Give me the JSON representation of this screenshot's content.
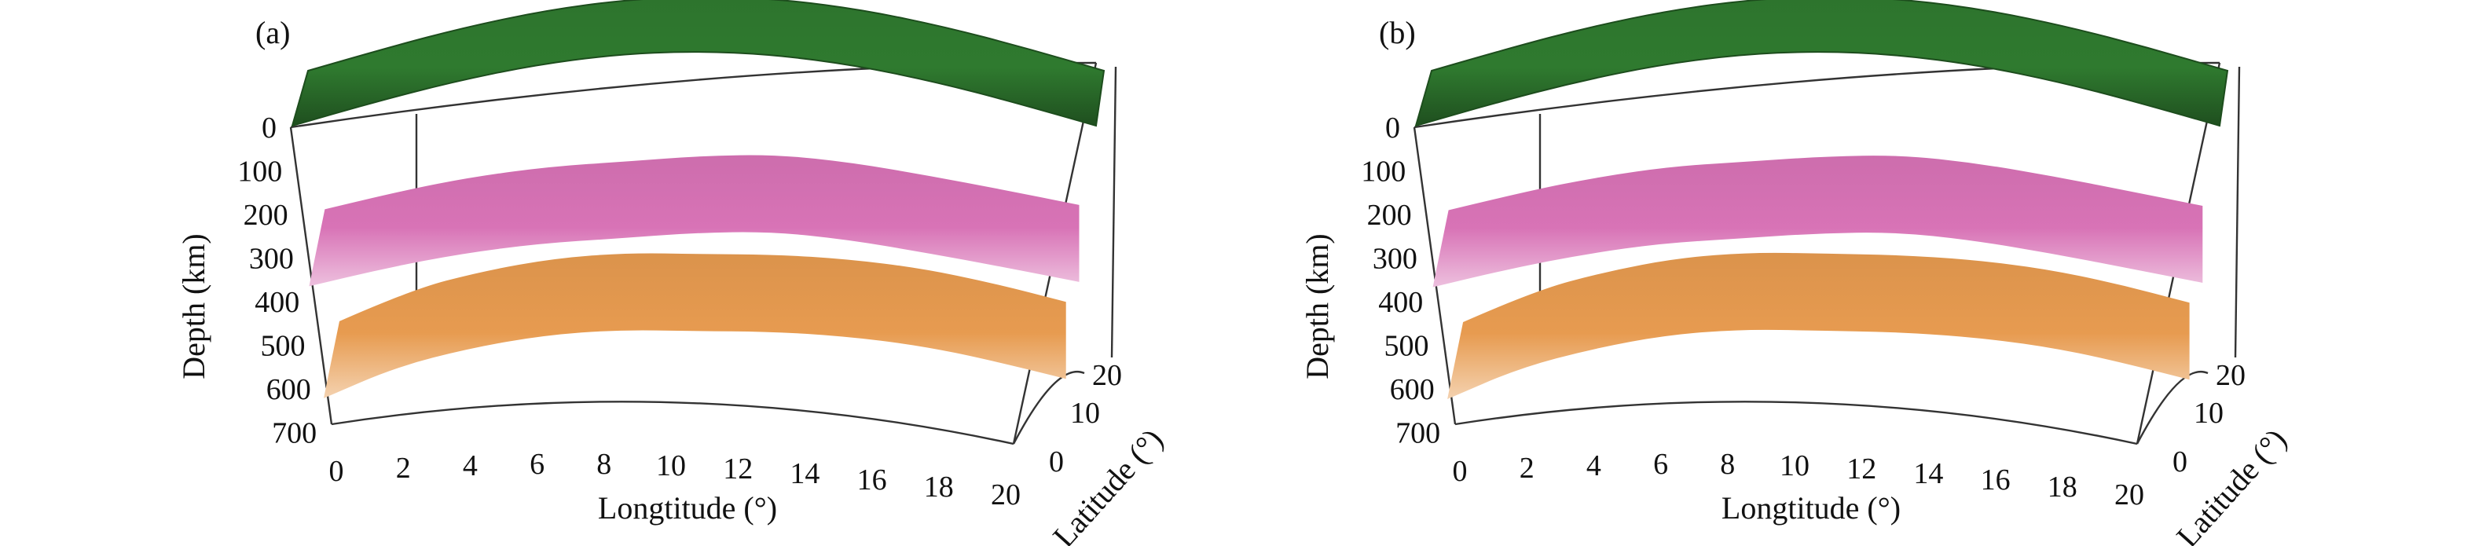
{
  "chart_data": [
    {
      "type": "surface3d",
      "panel_label": "(a)",
      "xlabel": "Longtitude (°)",
      "ylabel": "Latitude (°)",
      "zlabel": "Depth (km)",
      "x_ticks": [
        0,
        2,
        4,
        6,
        8,
        10,
        12,
        14,
        16,
        18,
        20
      ],
      "y_ticks": [
        0,
        10,
        20
      ],
      "z_ticks": [
        0,
        100,
        200,
        300,
        400,
        500,
        600,
        700
      ],
      "xlim": [
        0,
        20
      ],
      "ylim": [
        0,
        20
      ],
      "zlim": [
        0,
        700
      ],
      "surfaces": [
        {
          "color": "#2f7a2f",
          "depth_profile": [
            0,
            0,
            0,
            0,
            0,
            0,
            0,
            0,
            0,
            0,
            0
          ]
        },
        {
          "color": "#d873b6",
          "depth_profile": [
            300,
            290,
            285,
            285,
            288,
            280,
            272,
            276,
            283,
            287,
            290
          ]
        },
        {
          "color": "#e79b50",
          "depth_profile": [
            560,
            520,
            505,
            498,
            500,
            508,
            504,
            500,
            498,
            504,
            515
          ]
        }
      ]
    },
    {
      "type": "surface3d",
      "panel_label": "(b)",
      "xlabel": "Longtitude (°)",
      "ylabel": "Latitude (°)",
      "zlabel": "Depth (km)",
      "x_ticks": [
        0,
        2,
        4,
        6,
        8,
        10,
        12,
        14,
        16,
        18,
        20
      ],
      "y_ticks": [
        0,
        10,
        20
      ],
      "z_ticks": [
        0,
        100,
        200,
        300,
        400,
        500,
        600,
        700
      ],
      "xlim": [
        0,
        20
      ],
      "ylim": [
        0,
        20
      ],
      "zlim": [
        0,
        700
      ],
      "surfaces": [
        {
          "color": "#2f7a2f",
          "depth_profile": [
            0,
            0,
            0,
            0,
            0,
            0,
            0,
            0,
            0,
            0,
            0
          ]
        },
        {
          "color": "#d873b6",
          "depth_profile": [
            302,
            292,
            286,
            284,
            288,
            281,
            273,
            277,
            284,
            289,
            292
          ]
        },
        {
          "color": "#e79b50",
          "depth_profile": [
            562,
            522,
            506,
            497,
            499,
            507,
            505,
            501,
            499,
            505,
            517
          ]
        }
      ]
    }
  ]
}
